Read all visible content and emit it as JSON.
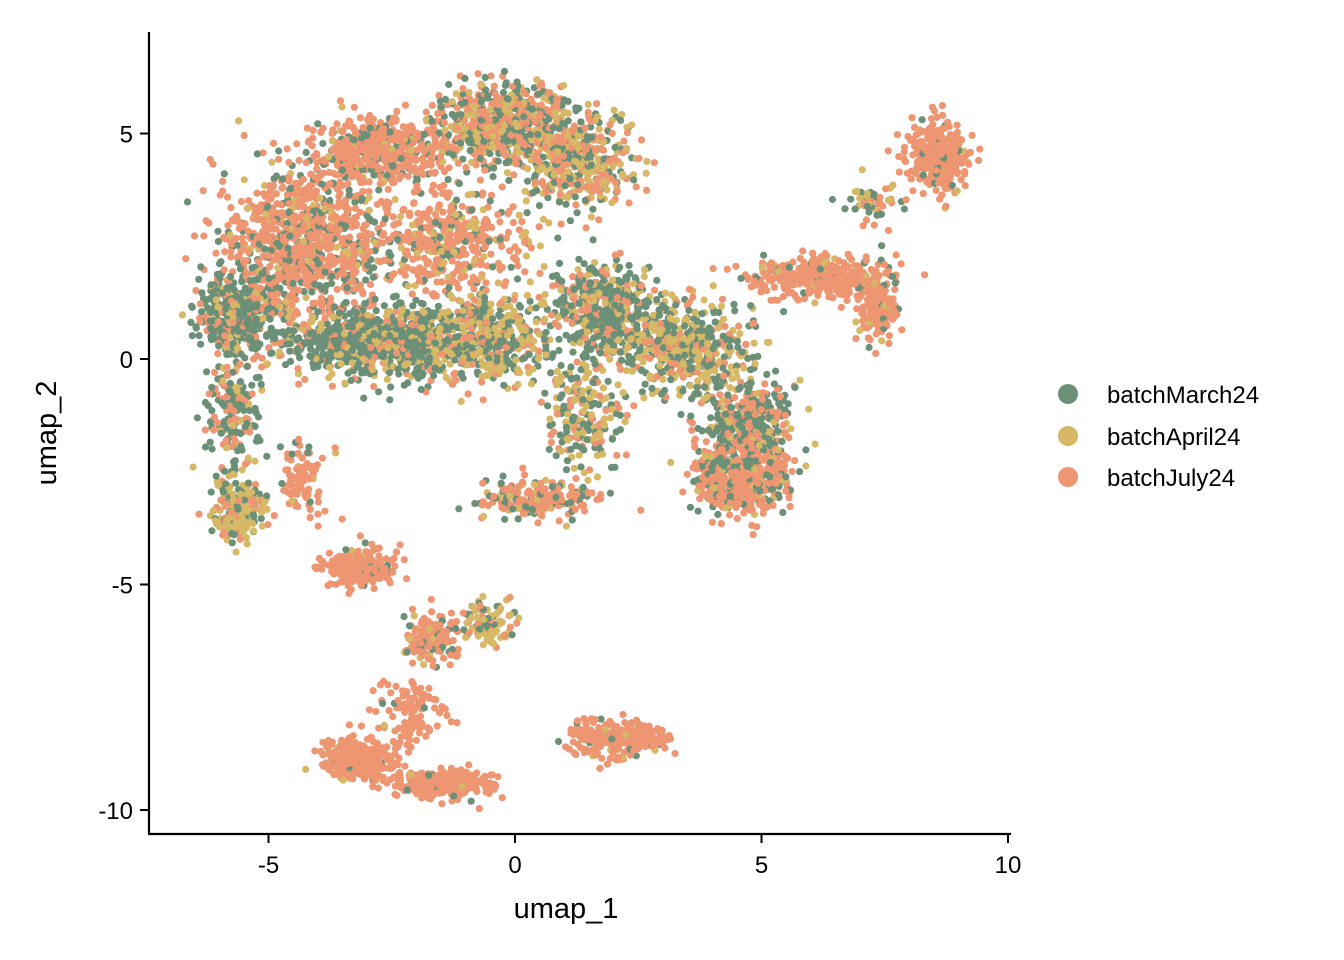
{
  "chart_data": {
    "type": "scatter",
    "title": "",
    "xlabel": "umap_1",
    "ylabel": "umap_2",
    "xlim": [
      -7.4,
      10.0
    ],
    "ylim": [
      -10.5,
      7.2
    ],
    "xticks": [
      -5,
      0,
      5,
      10
    ],
    "yticks": [
      -10,
      -5,
      0,
      5
    ],
    "legend_position": "right",
    "grid": false,
    "series": [
      {
        "name": "batchMarch24",
        "color": "#6B9077"
      },
      {
        "name": "batchApril24",
        "color": "#D6B867"
      },
      {
        "name": "batchJuly24",
        "color": "#EE9572"
      }
    ],
    "clusters": [
      {
        "x": -4.3,
        "y": 2.6,
        "sx": 1.1,
        "sy": 1.1,
        "mix": [
          0.22,
          0.06,
          0.72
        ],
        "n": 900
      },
      {
        "x": -2.7,
        "y": 4.6,
        "sx": 0.9,
        "sy": 0.5,
        "mix": [
          0.15,
          0.05,
          0.8
        ],
        "n": 500
      },
      {
        "x": -0.3,
        "y": 5.2,
        "sx": 0.9,
        "sy": 0.6,
        "mix": [
          0.35,
          0.2,
          0.45
        ],
        "n": 650
      },
      {
        "x": 1.2,
        "y": 4.4,
        "sx": 0.8,
        "sy": 0.7,
        "mix": [
          0.3,
          0.4,
          0.3
        ],
        "n": 450
      },
      {
        "x": -1.5,
        "y": 2.6,
        "sx": 1.1,
        "sy": 0.8,
        "mix": [
          0.15,
          0.15,
          0.7
        ],
        "n": 450
      },
      {
        "x": -5.6,
        "y": 1.0,
        "sx": 0.55,
        "sy": 0.6,
        "mix": [
          0.65,
          0.15,
          0.2
        ],
        "n": 420
      },
      {
        "x": -2.8,
        "y": 0.4,
        "sx": 1.2,
        "sy": 0.55,
        "mix": [
          0.62,
          0.2,
          0.18
        ],
        "n": 850
      },
      {
        "x": -0.7,
        "y": 0.4,
        "sx": 0.9,
        "sy": 0.6,
        "mix": [
          0.4,
          0.45,
          0.15
        ],
        "n": 500
      },
      {
        "x": 1.8,
        "y": 1.0,
        "sx": 0.8,
        "sy": 0.8,
        "mix": [
          0.55,
          0.25,
          0.2
        ],
        "n": 520
      },
      {
        "x": 3.5,
        "y": 0.2,
        "sx": 0.8,
        "sy": 0.7,
        "mix": [
          0.4,
          0.4,
          0.2
        ],
        "n": 420
      },
      {
        "x": 4.7,
        "y": -1.5,
        "sx": 0.6,
        "sy": 0.7,
        "mix": [
          0.55,
          0.15,
          0.3
        ],
        "n": 380
      },
      {
        "x": 4.6,
        "y": -2.6,
        "sx": 0.65,
        "sy": 0.55,
        "mix": [
          0.25,
          0.1,
          0.65
        ],
        "n": 480
      },
      {
        "x": 6.2,
        "y": 1.8,
        "sx": 0.9,
        "sy": 0.3,
        "mix": [
          0.05,
          0.07,
          0.88
        ],
        "n": 380
      },
      {
        "x": 7.4,
        "y": 1.1,
        "sx": 0.3,
        "sy": 0.45,
        "mix": [
          0.05,
          0.1,
          0.85
        ],
        "n": 130
      },
      {
        "x": 8.6,
        "y": 4.5,
        "sx": 0.4,
        "sy": 0.5,
        "mix": [
          0.08,
          0.04,
          0.88
        ],
        "n": 350
      },
      {
        "x": 7.2,
        "y": 3.5,
        "sx": 0.5,
        "sy": 0.3,
        "mix": [
          0.35,
          0.25,
          0.4
        ],
        "n": 50
      },
      {
        "x": 1.4,
        "y": -1.3,
        "sx": 0.45,
        "sy": 0.8,
        "mix": [
          0.45,
          0.35,
          0.2
        ],
        "n": 200
      },
      {
        "x": 0.4,
        "y": -3.1,
        "sx": 0.8,
        "sy": 0.3,
        "mix": [
          0.25,
          0.1,
          0.65
        ],
        "n": 200
      },
      {
        "x": -5.6,
        "y": -3.4,
        "sx": 0.35,
        "sy": 0.45,
        "mix": [
          0.3,
          0.55,
          0.15
        ],
        "n": 200
      },
      {
        "x": -5.7,
        "y": -1.2,
        "sx": 0.35,
        "sy": 0.9,
        "mix": [
          0.5,
          0.15,
          0.35
        ],
        "n": 170
      },
      {
        "x": -4.3,
        "y": -2.7,
        "sx": 0.35,
        "sy": 0.6,
        "mix": [
          0.05,
          0.05,
          0.9
        ],
        "n": 90
      },
      {
        "x": -3.2,
        "y": -4.6,
        "sx": 0.5,
        "sy": 0.28,
        "mix": [
          0.04,
          0.03,
          0.93
        ],
        "n": 220
      },
      {
        "x": -1.7,
        "y": -6.2,
        "sx": 0.35,
        "sy": 0.4,
        "mix": [
          0.2,
          0.1,
          0.7
        ],
        "n": 140
      },
      {
        "x": -0.6,
        "y": -5.8,
        "sx": 0.35,
        "sy": 0.35,
        "mix": [
          0.25,
          0.5,
          0.25
        ],
        "n": 90
      },
      {
        "x": -3.2,
        "y": -8.9,
        "sx": 0.5,
        "sy": 0.3,
        "mix": [
          0.03,
          0.02,
          0.95
        ],
        "n": 300
      },
      {
        "x": -1.5,
        "y": -9.4,
        "sx": 0.7,
        "sy": 0.22,
        "mix": [
          0.03,
          0.02,
          0.95
        ],
        "n": 260
      },
      {
        "x": -2.1,
        "y": -7.9,
        "sx": 0.5,
        "sy": 0.5,
        "mix": [
          0.03,
          0.02,
          0.95
        ],
        "n": 100
      },
      {
        "x": 1.8,
        "y": -8.4,
        "sx": 0.5,
        "sy": 0.3,
        "mix": [
          0.05,
          0.02,
          0.93
        ],
        "n": 150
      },
      {
        "x": 2.6,
        "y": -8.4,
        "sx": 0.35,
        "sy": 0.22,
        "mix": [
          0.05,
          0.02,
          0.93
        ],
        "n": 110
      }
    ]
  }
}
